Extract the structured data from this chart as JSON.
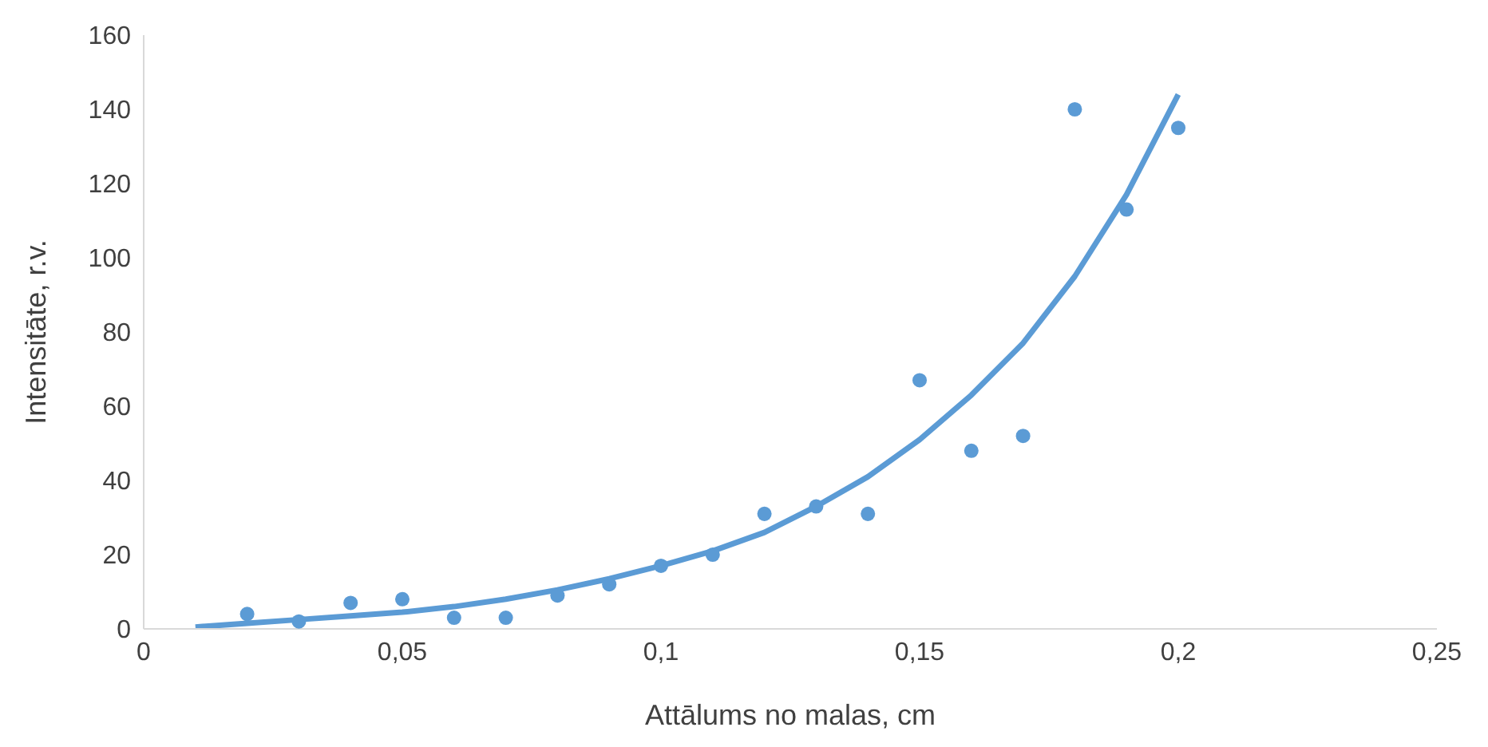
{
  "chart_data": {
    "type": "scatter",
    "xlabel": "Attālums no malas, cm",
    "ylabel": "Intensitāte, r.v.",
    "xlim": [
      0,
      0.25
    ],
    "xticks": [
      0,
      {
        "value": 0.05,
        "label": "0,05"
      },
      {
        "value": 0.1,
        "label": "0,1"
      },
      {
        "value": 0.15,
        "label": "0,15"
      },
      {
        "value": 0.2,
        "label": "0,2"
      },
      {
        "value": 0.25,
        "label": "0,25"
      }
    ],
    "ylim": [
      0,
      160
    ],
    "yticks": [
      0,
      20,
      40,
      60,
      80,
      100,
      120,
      140,
      160
    ],
    "grid": false,
    "legend": false,
    "series": [
      {
        "type": "scatter",
        "color": "#5b9bd5",
        "marker": "circle",
        "x": [
          0.02,
          0.03,
          0.04,
          0.05,
          0.06,
          0.07,
          0.08,
          0.09,
          0.1,
          0.11,
          0.12,
          0.13,
          0.14,
          0.15,
          0.16,
          0.17,
          0.18,
          0.19,
          0.2
        ],
        "values": [
          4,
          2,
          7,
          8,
          3,
          3,
          9,
          12,
          17,
          20,
          31,
          33,
          31,
          67,
          48,
          52,
          140,
          113,
          135
        ]
      },
      {
        "type": "line",
        "color": "#5b9bd5",
        "marker": "none",
        "line_style": "solid",
        "x": [
          0.01,
          0.02,
          0.03,
          0.04,
          0.05,
          0.06,
          0.07,
          0.08,
          0.09,
          0.1,
          0.11,
          0.12,
          0.13,
          0.14,
          0.15,
          0.16,
          0.17,
          0.18,
          0.19,
          0.2
        ],
        "values": [
          0.5,
          1.5,
          2.5,
          3.5,
          4.5,
          6,
          8,
          10.5,
          13.5,
          17,
          21,
          26,
          33,
          41,
          51,
          63,
          77,
          95,
          117,
          144
        ]
      }
    ]
  }
}
